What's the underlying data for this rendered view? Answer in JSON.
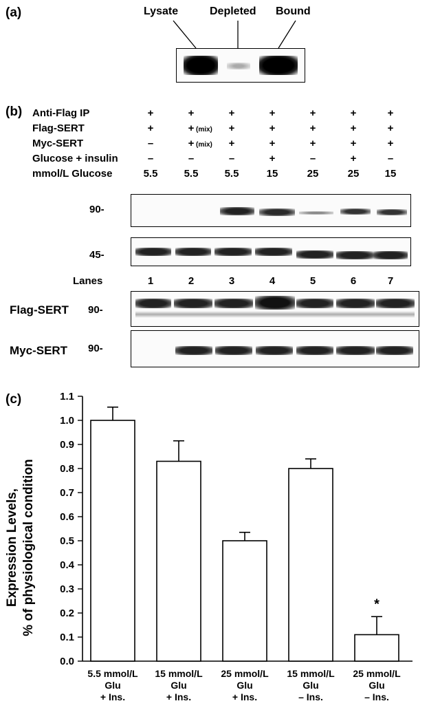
{
  "panel_a": {
    "label": "(a)",
    "lanes": [
      "Lysate",
      "Depleted",
      "Bound"
    ]
  },
  "panel_b": {
    "label": "(b)",
    "rows": [
      {
        "label": "Anti-Flag IP",
        "values": [
          "+",
          "+",
          "+",
          "+",
          "+",
          "+",
          "+"
        ]
      },
      {
        "label": "Flag-SERT",
        "values": [
          "+",
          "+",
          "+",
          "+",
          "+",
          "+",
          "+"
        ],
        "mix_lane": 2,
        "mix_text": "(mix)"
      },
      {
        "label": "Myc-SERT",
        "values": [
          "–",
          "+",
          "+",
          "+",
          "+",
          "+",
          "+"
        ],
        "mix_lane": 2,
        "mix_text": "(mix)"
      },
      {
        "label": "Glucose + insulin",
        "values": [
          "–",
          "–",
          "–",
          "+",
          "–",
          "+",
          "–"
        ]
      },
      {
        "label": "mmol/L Glucose",
        "values": [
          "5.5",
          "5.5",
          "5.5",
          "15",
          "25",
          "25",
          "15"
        ]
      }
    ],
    "blot1_marker": "90-",
    "blot2_marker": "45-",
    "lanes_label": "Lanes",
    "lane_numbers": [
      "1",
      "2",
      "3",
      "4",
      "5",
      "6",
      "7"
    ],
    "flag_blot_label": "Flag-SERT",
    "flag_blot_marker": "90-",
    "myc_blot_label": "Myc-SERT",
    "myc_blot_marker": "90-"
  },
  "panel_c": {
    "label": "(c)",
    "chart_data": {
      "type": "bar",
      "categories": [
        [
          "5.5 mmol/L",
          "Glu",
          "+ Ins."
        ],
        [
          "15 mmol/L",
          "Glu",
          "+ Ins."
        ],
        [
          "25 mmol/L",
          "Glu",
          "+ Ins."
        ],
        [
          "15 mmol/L",
          "Glu",
          "– Ins."
        ],
        [
          "25 mmol/L",
          "Glu",
          "– Ins."
        ]
      ],
      "values": [
        1.0,
        0.83,
        0.5,
        0.8,
        0.11
      ],
      "errors": [
        0.055,
        0.085,
        0.035,
        0.04,
        0.075
      ],
      "annotations": [
        "",
        "",
        "",
        "",
        "*"
      ],
      "ylabel_lines": [
        "Expression Levels,",
        "% of physiological condition"
      ],
      "ylim": [
        0,
        1.1
      ],
      "yticks": [
        "0.0",
        "0.1",
        "0.2",
        "0.3",
        "0.4",
        "0.5",
        "0.6",
        "0.7",
        "0.8",
        "0.9",
        "1.0",
        "1.1"
      ],
      "grid": false
    }
  }
}
